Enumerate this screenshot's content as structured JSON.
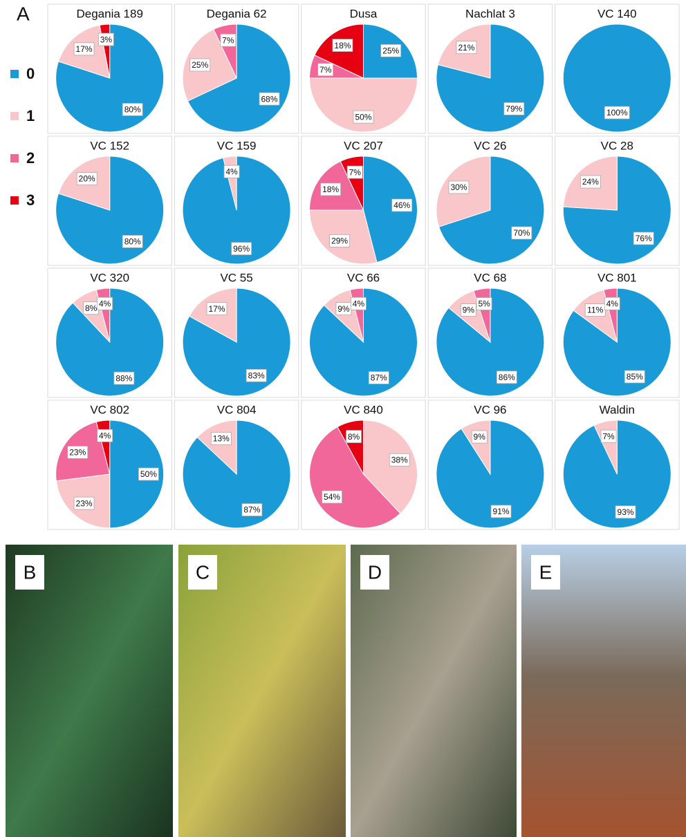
{
  "panel_labels": [
    "A",
    "B",
    "C",
    "D",
    "E"
  ],
  "legend": {
    "labels": [
      "0",
      "1",
      "2",
      "3"
    ],
    "colors": [
      "#1a9ad6",
      "#f9c6ca",
      "#f2679a",
      "#e60012"
    ]
  },
  "chart_data": [
    {
      "type": "pie",
      "title": "Degania 189",
      "values": [
        80,
        17,
        0,
        3
      ],
      "value_labels": [
        "80%",
        "17%",
        null,
        "3%"
      ]
    },
    {
      "type": "pie",
      "title": "Degania 62",
      "values": [
        68,
        25,
        7,
        0
      ],
      "value_labels": [
        "68%",
        "25%",
        "7%",
        null
      ]
    },
    {
      "type": "pie",
      "title": "Dusa",
      "values": [
        25,
        50,
        7,
        18
      ],
      "value_labels": [
        "25%",
        "50%",
        "7%",
        "18%"
      ]
    },
    {
      "type": "pie",
      "title": "Nachlat 3",
      "values": [
        79,
        21,
        0,
        0
      ],
      "value_labels": [
        "79%",
        "21%",
        null,
        null
      ]
    },
    {
      "type": "pie",
      "title": "VC 140",
      "values": [
        100,
        0,
        0,
        0
      ],
      "value_labels": [
        "100%",
        null,
        null,
        null
      ]
    },
    {
      "type": "pie",
      "title": "VC 152",
      "values": [
        80,
        20,
        0,
        0
      ],
      "value_labels": [
        "80%",
        "20%",
        null,
        null
      ]
    },
    {
      "type": "pie",
      "title": "VC 159",
      "values": [
        96,
        4,
        0,
        0
      ],
      "value_labels": [
        "96%",
        "4%",
        null,
        null
      ]
    },
    {
      "type": "pie",
      "title": "VC 207",
      "values": [
        46,
        29,
        18,
        7
      ],
      "value_labels": [
        "46%",
        "29%",
        "18%",
        "7%"
      ]
    },
    {
      "type": "pie",
      "title": "VC 26",
      "values": [
        70,
        30,
        0,
        0
      ],
      "value_labels": [
        "70%",
        "30%",
        null,
        null
      ]
    },
    {
      "type": "pie",
      "title": "VC 28",
      "values": [
        76,
        24,
        0,
        0
      ],
      "value_labels": [
        "76%",
        "24%",
        null,
        null
      ]
    },
    {
      "type": "pie",
      "title": "VC 320",
      "values": [
        88,
        8,
        4,
        0
      ],
      "value_labels": [
        "88%",
        "8%",
        "4%",
        null
      ]
    },
    {
      "type": "pie",
      "title": "VC 55",
      "values": [
        83,
        17,
        0,
        0
      ],
      "value_labels": [
        "83%",
        "17%",
        null,
        null
      ]
    },
    {
      "type": "pie",
      "title": "VC 66",
      "values": [
        87,
        9,
        4,
        0
      ],
      "value_labels": [
        "87%",
        "9%",
        "4%",
        null
      ]
    },
    {
      "type": "pie",
      "title": "VC 68",
      "values": [
        86,
        9,
        5,
        0
      ],
      "value_labels": [
        "86%",
        "9%",
        "5%",
        null
      ]
    },
    {
      "type": "pie",
      "title": "VC 801",
      "values": [
        85,
        11,
        4,
        0
      ],
      "value_labels": [
        "85%",
        "11%",
        "4%",
        null
      ]
    },
    {
      "type": "pie",
      "title": "VC 802",
      "values": [
        50,
        23,
        23,
        4
      ],
      "value_labels": [
        "50%",
        "23%",
        "23%",
        "4%"
      ]
    },
    {
      "type": "pie",
      "title": "VC 804",
      "values": [
        87,
        13,
        0,
        0
      ],
      "value_labels": [
        "87%",
        "13%",
        null,
        null
      ]
    },
    {
      "type": "pie",
      "title": "VC 840",
      "values": [
        0,
        38,
        54,
        8
      ],
      "value_labels": [
        null,
        "38%",
        "54%",
        "8%"
      ]
    },
    {
      "type": "pie",
      "title": "VC 96",
      "values": [
        91,
        9,
        0,
        0
      ],
      "value_labels": [
        "91%",
        "9%",
        null,
        null
      ]
    },
    {
      "type": "pie",
      "title": "Waldin",
      "values": [
        93,
        7,
        0,
        0
      ],
      "value_labels": [
        "93%",
        "7%",
        null,
        null
      ]
    }
  ]
}
